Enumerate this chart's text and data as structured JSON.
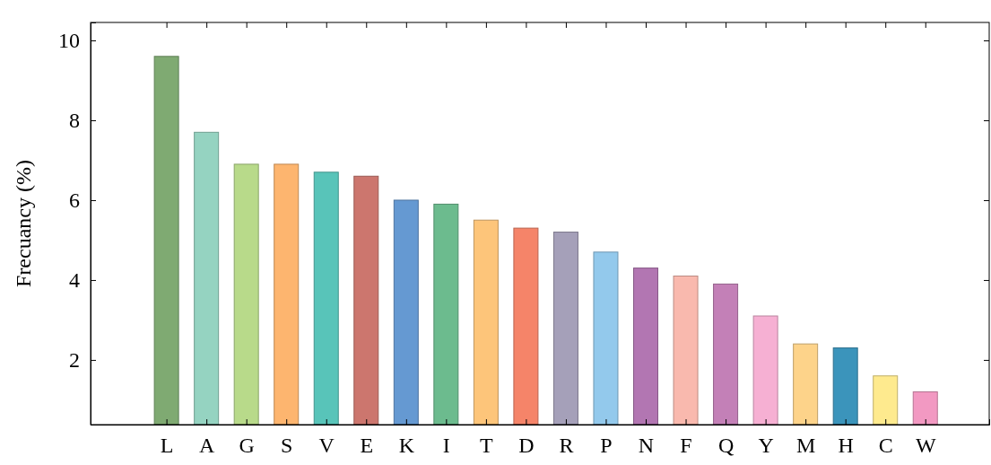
{
  "chart_data": {
    "type": "bar",
    "ylabel": "Frecuancy (%)",
    "categories": [
      "L",
      "A",
      "G",
      "S",
      "V",
      "E",
      "K",
      "I",
      "T",
      "D",
      "R",
      "P",
      "N",
      "F",
      "Q",
      "Y",
      "M",
      "H",
      "C",
      "W"
    ],
    "values": [
      9.6,
      7.7,
      6.9,
      6.9,
      6.7,
      6.6,
      6.0,
      5.9,
      5.5,
      5.3,
      5.2,
      4.7,
      4.3,
      4.1,
      3.9,
      3.1,
      2.4,
      2.3,
      1.6,
      1.2
    ],
    "colors": [
      "#7faa72",
      "#95d3c1",
      "#b8da8a",
      "#fdb56f",
      "#58c4b9",
      "#cc766e",
      "#6599d2",
      "#6cbb8e",
      "#fdc57a",
      "#f58469",
      "#a5a0b9",
      "#93c9ec",
      "#b276b2",
      "#f9b9ae",
      "#c380b7",
      "#f6b0d3",
      "#fdd38a",
      "#3b94bb",
      "#feea8e",
      "#f299c2"
    ],
    "ylim": [
      0.38,
      10.45
    ],
    "yticks": [
      2,
      4,
      6,
      8,
      10
    ]
  }
}
